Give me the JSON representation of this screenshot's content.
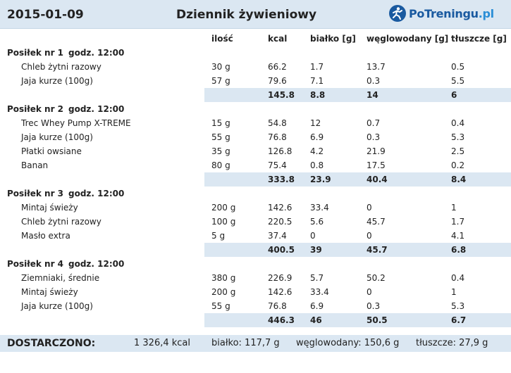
{
  "header": {
    "date": "2015-01-09",
    "title": "Dziennik żywieniowy",
    "logo_text_main": "PoTreningu",
    "logo_text_domain": ".pl"
  },
  "columns": {
    "qty": "ilość",
    "kcal": "kcal",
    "protein": "białko [g]",
    "carbs": "węglowodany [g]",
    "fat": "tłuszcze [g]"
  },
  "meals": [
    {
      "name": "Posiłek nr 1",
      "time": "godz. 12:00",
      "items": [
        {
          "name": "Chleb żytni razowy",
          "qty": "30 g",
          "kcal": "66.2",
          "protein": "1.7",
          "carbs": "13.7",
          "fat": "0.5"
        },
        {
          "name": "Jaja kurze (100g)",
          "qty": "57 g",
          "kcal": "79.6",
          "protein": "7.1",
          "carbs": "0.3",
          "fat": "5.5"
        }
      ],
      "total": {
        "kcal": "145.8",
        "protein": "8.8",
        "carbs": "14",
        "fat": "6"
      }
    },
    {
      "name": "Posiłek nr 2",
      "time": "godz. 12:00",
      "items": [
        {
          "name": "Trec Whey Pump X-TREME",
          "qty": "15 g",
          "kcal": "54.8",
          "protein": "12",
          "carbs": "0.7",
          "fat": "0.4"
        },
        {
          "name": "Jaja kurze (100g)",
          "qty": "55 g",
          "kcal": "76.8",
          "protein": "6.9",
          "carbs": "0.3",
          "fat": "5.3"
        },
        {
          "name": "Płatki owsiane",
          "qty": "35 g",
          "kcal": "126.8",
          "protein": "4.2",
          "carbs": "21.9",
          "fat": "2.5"
        },
        {
          "name": "Banan",
          "qty": "80 g",
          "kcal": "75.4",
          "protein": "0.8",
          "carbs": "17.5",
          "fat": "0.2"
        }
      ],
      "total": {
        "kcal": "333.8",
        "protein": "23.9",
        "carbs": "40.4",
        "fat": "8.4"
      }
    },
    {
      "name": "Posiłek nr 3",
      "time": "godz. 12:00",
      "items": [
        {
          "name": "Mintaj świeży",
          "qty": "200 g",
          "kcal": "142.6",
          "protein": "33.4",
          "carbs": "0",
          "fat": "1"
        },
        {
          "name": "Chleb żytni razowy",
          "qty": "100 g",
          "kcal": "220.5",
          "protein": "5.6",
          "carbs": "45.7",
          "fat": "1.7"
        },
        {
          "name": "Masło extra",
          "qty": "5 g",
          "kcal": "37.4",
          "protein": "0",
          "carbs": "0",
          "fat": "4.1"
        }
      ],
      "total": {
        "kcal": "400.5",
        "protein": "39",
        "carbs": "45.7",
        "fat": "6.8"
      }
    },
    {
      "name": "Posiłek nr 4",
      "time": "godz. 12:00",
      "items": [
        {
          "name": "Ziemniaki, średnie",
          "qty": "380 g",
          "kcal": "226.9",
          "protein": "5.7",
          "carbs": "50.2",
          "fat": "0.4"
        },
        {
          "name": "Mintaj świeży",
          "qty": "200 g",
          "kcal": "142.6",
          "protein": "33.4",
          "carbs": "0",
          "fat": "1"
        },
        {
          "name": "Jaja kurze (100g)",
          "qty": "55 g",
          "kcal": "76.8",
          "protein": "6.9",
          "carbs": "0.3",
          "fat": "5.3"
        }
      ],
      "total": {
        "kcal": "446.3",
        "protein": "46",
        "carbs": "50.5",
        "fat": "6.7"
      }
    }
  ],
  "summary": {
    "label": "DOSTARCZONO:",
    "kcal": "1 326,4 kcal",
    "protein": "białko: 117,7 g",
    "carbs": "węglowodany: 150,6 g",
    "fat": "tłuszcze: 27,9 g"
  },
  "colors": {
    "header_bg": "#dbe7f2",
    "logo_blue": "#1a5aa0"
  },
  "icons": {
    "logo": "runner-logo-icon"
  }
}
